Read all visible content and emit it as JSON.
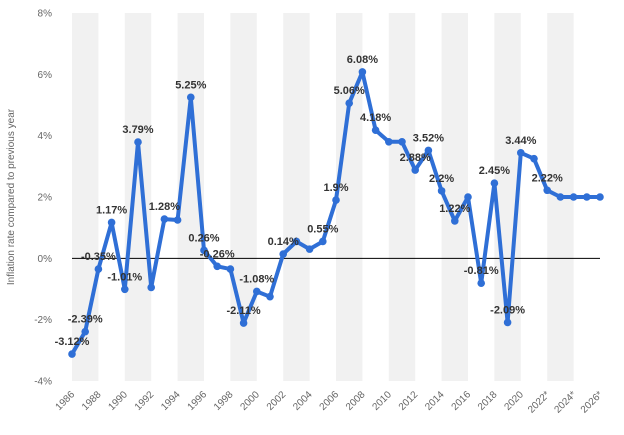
{
  "colors": {
    "line": "#2f6fd6",
    "zero_line": "#000000",
    "band": "#f1f1f1",
    "text": "#333333",
    "axis_text": "#666666"
  },
  "chart_data": {
    "type": "line",
    "title": "",
    "xlabel": "",
    "ylabel": "Inflation rate compared to previous year",
    "ylim": [
      -4,
      8
    ],
    "yticks": [
      -4,
      -2,
      0,
      2,
      4,
      6,
      8
    ],
    "ytick_labels": [
      "-4%",
      "-2%",
      "0%",
      "2%",
      "4%",
      "6%",
      "8%"
    ],
    "xlim": [
      1986,
      2026
    ],
    "xticks": [
      1986,
      1988,
      1990,
      1992,
      1994,
      1996,
      1998,
      2000,
      2002,
      2004,
      2006,
      2008,
      2010,
      2012,
      2014,
      2016,
      2018,
      2020,
      2022,
      2024,
      2026
    ],
    "xtick_labels": [
      "1986",
      "1988",
      "1990",
      "1992",
      "1994",
      "1996",
      "1998",
      "2000",
      "2002",
      "2004",
      "2006",
      "2008",
      "2010",
      "2012",
      "2014",
      "2016",
      "2018",
      "2020",
      "2022*",
      "2024*",
      "2026*"
    ],
    "grid": "alternating vertical bands",
    "series": [
      {
        "x": [
          1986,
          1987,
          1988,
          1989,
          1990,
          1991,
          1992,
          1993,
          1994,
          1995,
          1996,
          1997,
          1998,
          1999,
          2000,
          2001,
          2002,
          2003,
          2004,
          2005,
          2006,
          2007,
          2008,
          2009,
          2010,
          2011,
          2012,
          2013,
          2014,
          2015,
          2016,
          2017,
          2018,
          2019,
          2020,
          2021,
          2022,
          2023,
          2024,
          2025,
          2026
        ],
        "values": [
          -3.12,
          -2.39,
          -0.35,
          1.17,
          -1.01,
          3.79,
          -0.95,
          1.28,
          1.25,
          5.25,
          0.26,
          -0.26,
          -0.35,
          -2.11,
          -1.08,
          -1.25,
          0.14,
          0.55,
          0.3,
          0.55,
          1.9,
          5.06,
          6.08,
          4.18,
          3.8,
          3.8,
          2.88,
          3.52,
          2.2,
          1.22,
          2.0,
          -0.81,
          2.45,
          -2.09,
          3.44,
          3.25,
          2.22,
          2.0,
          2.0,
          2.0,
          2.0
        ]
      }
    ],
    "data_labels": [
      {
        "x": 1986,
        "y": -3.12,
        "text": "-3.12%"
      },
      {
        "x": 1987,
        "y": -2.39,
        "text": "-2.39%"
      },
      {
        "x": 1988,
        "y": -0.35,
        "text": "-0.35%"
      },
      {
        "x": 1989,
        "y": 1.17,
        "text": "1.17%"
      },
      {
        "x": 1990,
        "y": -1.01,
        "text": "-1.01%"
      },
      {
        "x": 1991,
        "y": 3.79,
        "text": "3.79%"
      },
      {
        "x": 1993,
        "y": 1.28,
        "text": "1.28%"
      },
      {
        "x": 1995,
        "y": 5.25,
        "text": "5.25%"
      },
      {
        "x": 1996,
        "y": 0.26,
        "text": "0.26%"
      },
      {
        "x": 1997,
        "y": -0.26,
        "text": "-0.26%"
      },
      {
        "x": 1999,
        "y": -2.11,
        "text": "-2.11%"
      },
      {
        "x": 2000,
        "y": -1.08,
        "text": "-1.08%"
      },
      {
        "x": 2002,
        "y": 0.14,
        "text": "0.14%"
      },
      {
        "x": 2005,
        "y": 0.55,
        "text": "0.55%"
      },
      {
        "x": 2006,
        "y": 1.9,
        "text": "1.9%"
      },
      {
        "x": 2007,
        "y": 5.06,
        "text": "5.06%"
      },
      {
        "x": 2008,
        "y": 6.08,
        "text": "6.08%"
      },
      {
        "x": 2009,
        "y": 4.18,
        "text": "4.18%"
      },
      {
        "x": 2012,
        "y": 2.88,
        "text": "2.88%"
      },
      {
        "x": 2013,
        "y": 3.52,
        "text": "3.52%"
      },
      {
        "x": 2014,
        "y": 2.2,
        "text": "2.2%"
      },
      {
        "x": 2015,
        "y": 1.22,
        "text": "1.22%"
      },
      {
        "x": 2017,
        "y": -0.81,
        "text": "-0.81%"
      },
      {
        "x": 2018,
        "y": 2.45,
        "text": "2.45%"
      },
      {
        "x": 2019,
        "y": -2.09,
        "text": "-2.09%"
      },
      {
        "x": 2020,
        "y": 3.44,
        "text": "3.44%"
      },
      {
        "x": 2022,
        "y": 2.22,
        "text": "2.22%"
      }
    ]
  }
}
